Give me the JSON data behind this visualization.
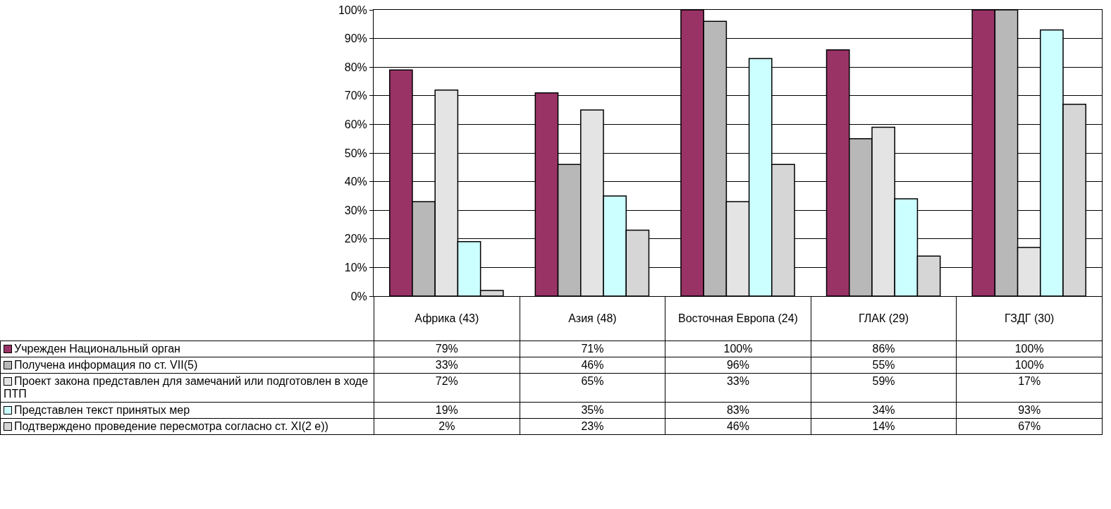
{
  "chart_data": {
    "type": "bar",
    "categories": [
      "Африка (43)",
      "Азия (48)",
      "Восточная Европа (24)",
      "ГЛАК (29)",
      "ГЗДГ (30)"
    ],
    "series": [
      {
        "name": "Учрежден Национальный орган",
        "color": "#993366",
        "values": [
          79,
          71,
          100,
          86,
          100
        ],
        "value_labels": [
          "79%",
          "71%",
          "100%",
          "86%",
          "100%"
        ]
      },
      {
        "name": "Получена информация по ст. VII(5)",
        "color": "#b8b8b8",
        "values": [
          33,
          46,
          96,
          55,
          100
        ],
        "value_labels": [
          "33%",
          "46%",
          "96%",
          "55%",
          "100%"
        ]
      },
      {
        "name": "Проект закона представлен для замечаний или подготовлен в ходе ПТП",
        "color": "#e4e4e4",
        "values": [
          72,
          65,
          33,
          59,
          17
        ],
        "value_labels": [
          "72%",
          "65%",
          "33%",
          "59%",
          "17%"
        ]
      },
      {
        "name": "Представлен текст принятых мер",
        "color": "#ccffff",
        "values": [
          19,
          35,
          83,
          34,
          93
        ],
        "value_labels": [
          "19%",
          "35%",
          "83%",
          "34%",
          "93%"
        ]
      },
      {
        "name": "Подтверждено проведение пересмотра согласно ст. XI(2 e))",
        "color": "#d6d6d6",
        "values": [
          2,
          23,
          46,
          14,
          67
        ],
        "value_labels": [
          "2%",
          "23%",
          "46%",
          "14%",
          "67%"
        ]
      }
    ],
    "ylim": [
      0,
      100
    ],
    "yticks": [
      {
        "value": 0,
        "label": "0%"
      },
      {
        "value": 10,
        "label": "10%"
      },
      {
        "value": 20,
        "label": "20%"
      },
      {
        "value": 30,
        "label": "30%"
      },
      {
        "value": 40,
        "label": "40%"
      },
      {
        "value": 50,
        "label": "50%"
      },
      {
        "value": 60,
        "label": "60%"
      },
      {
        "value": 70,
        "label": "70%"
      },
      {
        "value": 80,
        "label": "80%"
      },
      {
        "value": 90,
        "label": "90%"
      },
      {
        "value": 100,
        "label": "100%"
      }
    ],
    "grid": "y",
    "legend": "bottom left"
  }
}
